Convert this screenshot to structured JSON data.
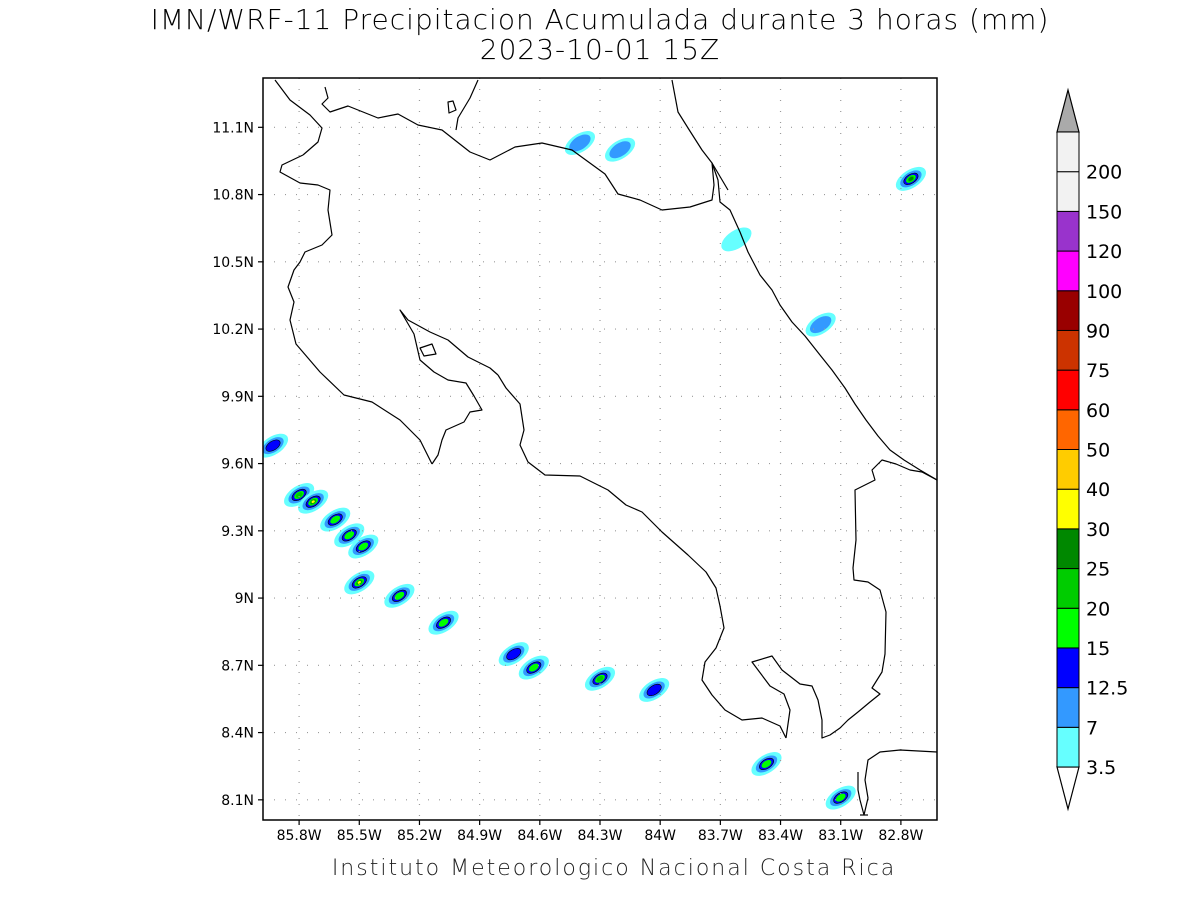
{
  "title_line1": "IMN/WRF-11 Precipitacion Acumulada durante 3 horas (mm)",
  "title_line2": "2023-10-01 15Z",
  "credit": "Instituto Meteorologico Nacional Costa Rica",
  "map": {
    "lon_range": [
      -85.98,
      -82.62
    ],
    "lat_range": [
      8.01,
      11.32
    ],
    "lat_ticks": [
      {
        "value": 8.1,
        "label": "8.1N"
      },
      {
        "value": 8.4,
        "label": "8.4N"
      },
      {
        "value": 8.7,
        "label": "8.7N"
      },
      {
        "value": 9.0,
        "label": "9N"
      },
      {
        "value": 9.3,
        "label": "9.3N"
      },
      {
        "value": 9.6,
        "label": "9.6N"
      },
      {
        "value": 9.9,
        "label": "9.9N"
      },
      {
        "value": 10.2,
        "label": "10.2N"
      },
      {
        "value": 10.5,
        "label": "10.5N"
      },
      {
        "value": 10.8,
        "label": "10.8N"
      },
      {
        "value": 11.1,
        "label": "11.1N"
      }
    ],
    "lon_ticks": [
      {
        "value": -85.8,
        "label": "85.8W"
      },
      {
        "value": -85.5,
        "label": "85.5W"
      },
      {
        "value": -85.2,
        "label": "85.2W"
      },
      {
        "value": -84.9,
        "label": "84.9W"
      },
      {
        "value": -84.6,
        "label": "84.6W"
      },
      {
        "value": -84.3,
        "label": "84.3W"
      },
      {
        "value": -84.0,
        "label": "84W"
      },
      {
        "value": -83.7,
        "label": "83.7W"
      },
      {
        "value": -83.4,
        "label": "83.4W"
      },
      {
        "value": -83.1,
        "label": "83.1W"
      },
      {
        "value": -82.8,
        "label": "82.8W"
      }
    ]
  },
  "colorbar": {
    "levels": [
      {
        "label": "3.5",
        "color": "#66ffff"
      },
      {
        "label": "7",
        "color": "#3399ff"
      },
      {
        "label": "12.5",
        "color": "#0000ff"
      },
      {
        "label": "15",
        "color": "#00ff00"
      },
      {
        "label": "20",
        "color": "#00cc00"
      },
      {
        "label": "25",
        "color": "#008800"
      },
      {
        "label": "30",
        "color": "#ffff00"
      },
      {
        "label": "40",
        "color": "#ffcc00"
      },
      {
        "label": "50",
        "color": "#ff6600"
      },
      {
        "label": "60",
        "color": "#ff0000"
      },
      {
        "label": "75",
        "color": "#cc3300"
      },
      {
        "label": "90",
        "color": "#990000"
      },
      {
        "label": "100",
        "color": "#ff00ff"
      },
      {
        "label": "120",
        "color": "#9933cc"
      },
      {
        "label": "150",
        "color": "#f2f2f2"
      },
      {
        "label": "200",
        "color": "#aaaaaa"
      }
    ]
  },
  "precip_cells": [
    {
      "lon": -85.93,
      "lat": 9.68,
      "level": 2
    },
    {
      "lon": -85.8,
      "lat": 9.46,
      "level": 4
    },
    {
      "lon": -85.73,
      "lat": 9.43,
      "level": 6
    },
    {
      "lon": -85.62,
      "lat": 9.35,
      "level": 3
    },
    {
      "lon": -85.55,
      "lat": 9.28,
      "level": 3
    },
    {
      "lon": -85.48,
      "lat": 9.23,
      "level": 3
    },
    {
      "lon": -85.5,
      "lat": 9.07,
      "level": 6
    },
    {
      "lon": -85.3,
      "lat": 9.01,
      "level": 3
    },
    {
      "lon": -85.08,
      "lat": 8.89,
      "level": 3
    },
    {
      "lon": -84.73,
      "lat": 8.75,
      "level": 2
    },
    {
      "lon": -84.63,
      "lat": 8.69,
      "level": 3
    },
    {
      "lon": -84.3,
      "lat": 8.64,
      "level": 4
    },
    {
      "lon": -84.03,
      "lat": 8.59,
      "level": 2
    },
    {
      "lon": -83.47,
      "lat": 8.26,
      "level": 3
    },
    {
      "lon": -83.1,
      "lat": 8.11,
      "level": 3
    },
    {
      "lon": -82.75,
      "lat": 10.87,
      "level": 5
    },
    {
      "lon": -84.4,
      "lat": 11.03,
      "level": 1
    },
    {
      "lon": -84.2,
      "lat": 11.0,
      "level": 1
    },
    {
      "lon": -83.2,
      "lat": 10.22,
      "level": 1
    },
    {
      "lon": -83.62,
      "lat": 10.6,
      "level": 0
    }
  ]
}
